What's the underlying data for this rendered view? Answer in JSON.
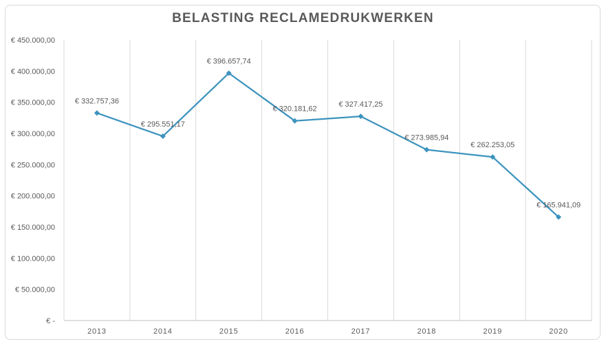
{
  "chart_data": {
    "type": "line",
    "title": "BELASTING RECLAMEDRUKWERKEN",
    "categories": [
      "2013",
      "2014",
      "2015",
      "2016",
      "2017",
      "2018",
      "2019",
      "2020"
    ],
    "series": [
      {
        "values": [
          332757.36,
          295551.17,
          396657.74,
          320181.62,
          327417.25,
          273985.94,
          262253.05,
          165941.09
        ],
        "data_labels": [
          "€ 332.757,36",
          "€ 295.551,17",
          "€ 396.657,74",
          "€ 320.181,62",
          "€ 327.417,25",
          "€ 273.985,94",
          "€ 262.253,05",
          "€ 165.941,09"
        ]
      }
    ],
    "y_ticks": [
      0,
      50000,
      100000,
      150000,
      200000,
      250000,
      300000,
      350000,
      400000,
      450000
    ],
    "y_tick_labels": [
      "€ -",
      "€ 50.000,00",
      "€ 100.000,00",
      "€ 150.000,00",
      "€ 200.000,00",
      "€ 250.000,00",
      "€ 300.000,00",
      "€ 350.000,00",
      "€ 400.000,00",
      "€ 450.000,00"
    ],
    "ylim": [
      0,
      450000
    ],
    "xlabel": "",
    "ylabel": "",
    "grid": "vertical",
    "marker": "diamond",
    "colors": {
      "line": "#3c93bd",
      "marker": "#3c93bd",
      "grid": "#d9d9d9",
      "axis": "#bfbfbf",
      "text": "#595959"
    }
  }
}
